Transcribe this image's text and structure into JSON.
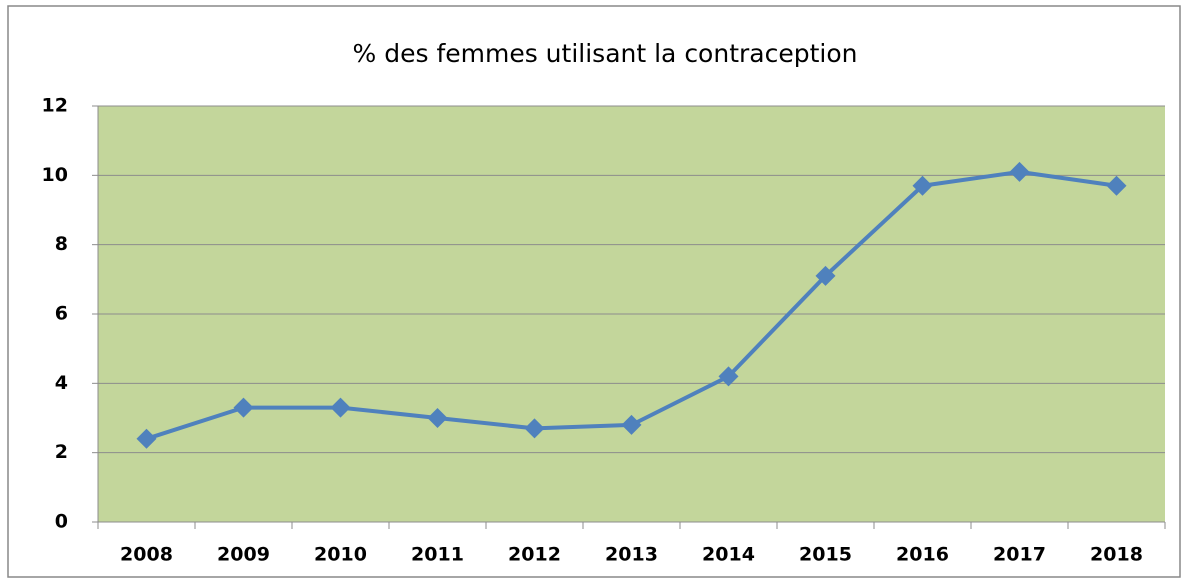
{
  "chart_data": {
    "type": "line",
    "title": "% des femmes utilisant la contraception",
    "categories": [
      "2008",
      "2009",
      "2010",
      "2011",
      "2012",
      "2013",
      "2014",
      "2015",
      "2016",
      "2017",
      "2018"
    ],
    "values": [
      2.4,
      3.3,
      3.3,
      3.0,
      2.7,
      2.8,
      4.2,
      7.1,
      9.7,
      10.1,
      9.7
    ],
    "color": "#4f81bd",
    "plot_background": "#c3d69b",
    "ylim": [
      0,
      12
    ],
    "yticks": [
      0,
      2,
      4,
      6,
      8,
      10,
      12
    ],
    "grid": true
  }
}
